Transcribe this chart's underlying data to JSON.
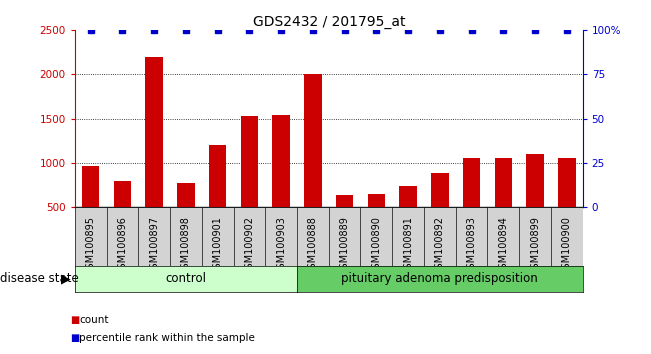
{
  "title": "GDS2432 / 201795_at",
  "samples": [
    "GSM100895",
    "GSM100896",
    "GSM100897",
    "GSM100898",
    "GSM100901",
    "GSM100902",
    "GSM100903",
    "GSM100888",
    "GSM100889",
    "GSM100890",
    "GSM100891",
    "GSM100892",
    "GSM100893",
    "GSM100894",
    "GSM100899",
    "GSM100900"
  ],
  "counts": [
    960,
    800,
    2200,
    770,
    1200,
    1530,
    1540,
    2000,
    640,
    650,
    740,
    880,
    1060,
    1060,
    1100,
    1060
  ],
  "percentile_ranks": [
    100,
    100,
    100,
    100,
    100,
    100,
    100,
    100,
    100,
    100,
    100,
    100,
    100,
    100,
    100,
    100
  ],
  "bar_color": "#cc0000",
  "dot_color": "#0000cc",
  "ylim_left": [
    500,
    2500
  ],
  "ylim_right": [
    0,
    100
  ],
  "yticks_left": [
    500,
    1000,
    1500,
    2000,
    2500
  ],
  "yticks_right": [
    0,
    25,
    50,
    75,
    100
  ],
  "ytick_right_labels": [
    "0",
    "25",
    "50",
    "75",
    "100%"
  ],
  "grid_values": [
    1000,
    1500,
    2000
  ],
  "control_samples": 7,
  "control_label": "control",
  "disease_label": "pituitary adenoma predisposition",
  "control_color": "#ccffcc",
  "disease_color": "#66cc66",
  "disease_state_label": "disease state",
  "legend_count_label": "count",
  "legend_percentile_label": "percentile rank within the sample",
  "title_fontsize": 10,
  "tick_fontsize": 7.5,
  "label_fontsize": 8.5,
  "sample_fontsize": 7
}
